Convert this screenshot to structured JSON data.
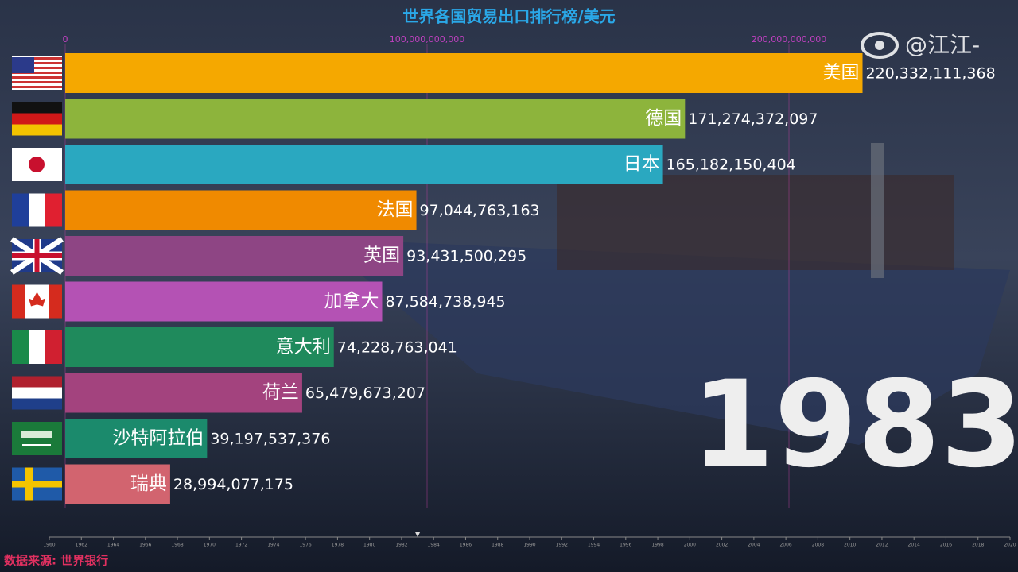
{
  "chart_data": {
    "type": "bar",
    "orientation": "horizontal",
    "title": "世界各国贸易出口排行榜/美元",
    "categories": [
      "美国",
      "德国",
      "日本",
      "法国",
      "英国",
      "加拿大",
      "意大利",
      "荷兰",
      "沙特阿拉伯",
      "瑞典"
    ],
    "values": [
      220332111368,
      171274372097,
      165182150404,
      97044763163,
      93431500295,
      87584738945,
      74228763041,
      65479673207,
      39197537376,
      28994077175
    ],
    "value_labels": [
      "220,332,111,368",
      "171,274,372,097",
      "165,182,150,404",
      "97,044,763,163",
      "93,431,500,295",
      "87,584,738,945",
      "74,228,763,041",
      "65,479,673,207",
      "39,197,537,376",
      "28,994,077,175"
    ],
    "colors": [
      "#f5a800",
      "#8db43c",
      "#2aa8c0",
      "#f08a00",
      "#8e4584",
      "#b452b4",
      "#1f8a5c",
      "#a3437e",
      "#1b8a6c",
      "#d2646f"
    ],
    "xlim": [
      0,
      260000000000
    ],
    "xticks": [
      0,
      {
        "value": 100000000000,
        "label": "100,000,000,000"
      },
      {
        "value": 200000000000,
        "label": "200,000,000,000"
      }
    ],
    "grid": true,
    "year": 1983,
    "timeline_lim": [
      1960,
      2020
    ],
    "timeline_ticks": [
      1960,
      1962,
      1964,
      1966,
      1968,
      1970,
      1972,
      1974,
      1976,
      1978,
      1980,
      1982,
      1984,
      1986,
      1988,
      1990,
      1992,
      1994,
      1996,
      1998,
      2000,
      2002,
      2004,
      2006,
      2008,
      2010,
      2012,
      2014,
      2016,
      2018,
      2020
    ],
    "watermark": "@江江-",
    "source": "数据来源: 世界银行"
  }
}
